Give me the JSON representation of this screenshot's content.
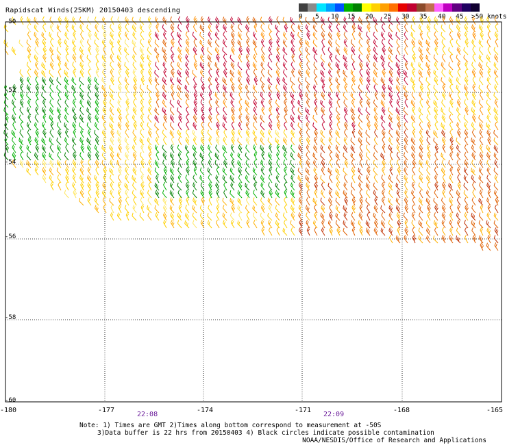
{
  "title": "Rapidscat Winds(25KM) 20150403 descending",
  "legend": {
    "labels": [
      "0",
      "5",
      "10",
      "15",
      "20",
      "25",
      "30",
      "35",
      "40",
      "45",
      ">50 knots"
    ],
    "colors": [
      "#404040",
      "#8a8a8a",
      "#00e5ff",
      "#00a0ff",
      "#0050ff",
      "#00b000",
      "#008000",
      "#ffff00",
      "#ffd000",
      "#ffa000",
      "#ff7000",
      "#e60000",
      "#c00030",
      "#8b4a2b",
      "#c07050",
      "#ff60ff",
      "#c000c0",
      "#600080",
      "#200060",
      "#100030"
    ]
  },
  "axes": {
    "lat_labels": [
      "-50",
      "-52",
      "-54",
      "-56",
      "-58",
      "-60"
    ],
    "lon_labels": [
      "-180",
      "-177",
      "-174",
      "-171",
      "-168",
      "-165"
    ]
  },
  "time_labels": [
    "22:08",
    "22:09"
  ],
  "notes": [
    "Note: 1) Times are GMT 2)Times along bottom correspond to measurement at -50S",
    "3)Data buffer is 22 hrs from 20150403 4) Black circles indicate possible contamination"
  ],
  "credit": "NOAA/NESDIS/Office of Research and Applications"
}
